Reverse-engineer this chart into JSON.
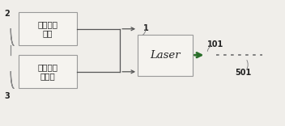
{
  "bg_color": "#f0eeea",
  "box1_text": "直流偏置\n电路",
  "box2_text": "调制信号\n发生器",
  "laser_text": "Laser",
  "label_2": "2",
  "label_3": "3",
  "label_1": "1",
  "label_101": "101",
  "label_501": "501",
  "box_facecolor": "#f5f3ef",
  "box_edgecolor": "#999999",
  "line_color_solid": "#2a6e2a",
  "line_color_arrow": "#555555",
  "line_color_dashed": "#777777",
  "text_color": "#222222",
  "brace_color": "#888888",
  "font_size_box": 7.5,
  "font_size_label": 7.5
}
